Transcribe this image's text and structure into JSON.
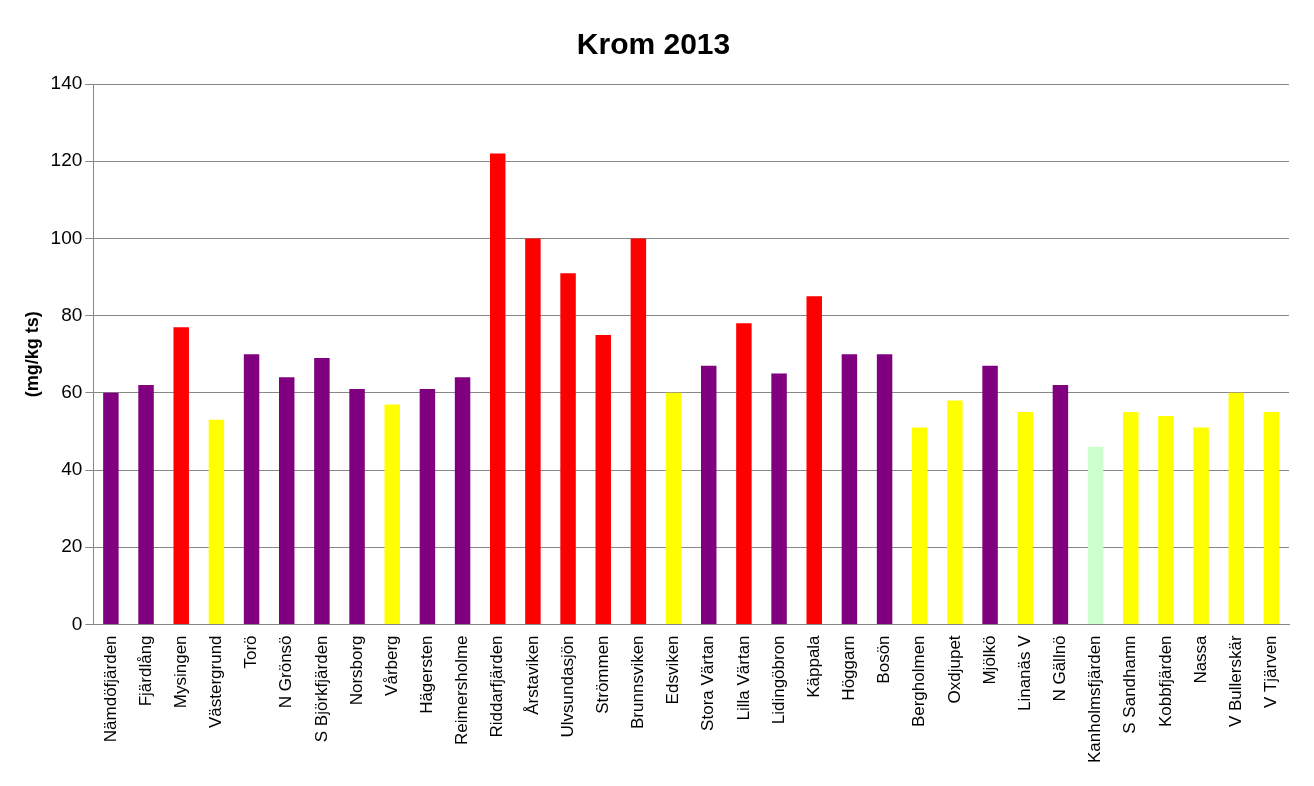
{
  "chart_data": {
    "type": "bar",
    "title": "Krom 2013",
    "ylabel": "(mg/kg ts)",
    "categories": [
      "Nämdöfjärden",
      "Fjärdlång",
      "Mysingen",
      "Västergrund",
      "Torö",
      "N Grönsö",
      "S Björkfjärden",
      "Norsborg",
      "Vårberg",
      "Hägersten",
      "Reimersholme",
      "Riddarfjärden",
      "Årstaviken",
      "Ulvsundasjön",
      "Strömmen",
      "Brunnsviken",
      "Edsviken",
      "Stora Värtan",
      "Lilla Värtan",
      "Lidingöbron",
      "Käppala",
      "Höggarn",
      "Bosön",
      "Bergholmen",
      "Oxdjupet",
      "Mjölkö",
      "Linanäs V",
      "N Gällnö",
      "Kanholmsfjärden",
      "S Sandhamn",
      "Kobbfjärden",
      "Nassa",
      "V Bullerskär",
      "V Tjärven"
    ],
    "values": [
      60,
      62,
      77,
      53,
      70,
      64,
      69,
      61,
      57,
      61,
      64,
      122,
      100,
      91,
      75,
      100,
      60,
      67,
      78,
      65,
      85,
      70,
      70,
      51,
      58,
      67,
      55,
      62,
      46,
      55,
      54,
      51,
      60,
      55
    ],
    "colors": [
      "#800080",
      "#800080",
      "#ff0000",
      "#ffff00",
      "#800080",
      "#800080",
      "#800080",
      "#800080",
      "#ffff00",
      "#800080",
      "#800080",
      "#ff0000",
      "#ff0000",
      "#ff0000",
      "#ff0000",
      "#ff0000",
      "#ffff00",
      "#800080",
      "#ff0000",
      "#800080",
      "#ff0000",
      "#800080",
      "#800080",
      "#ffff00",
      "#ffff00",
      "#800080",
      "#ffff00",
      "#800080",
      "#ccffcc",
      "#ffff00",
      "#ffff00",
      "#ffff00",
      "#ffff00",
      "#ffff00"
    ],
    "ylim": [
      0,
      140
    ],
    "yticks": [
      0,
      20,
      40,
      60,
      80,
      100,
      120,
      140
    ],
    "grid": "y",
    "legend": false
  }
}
